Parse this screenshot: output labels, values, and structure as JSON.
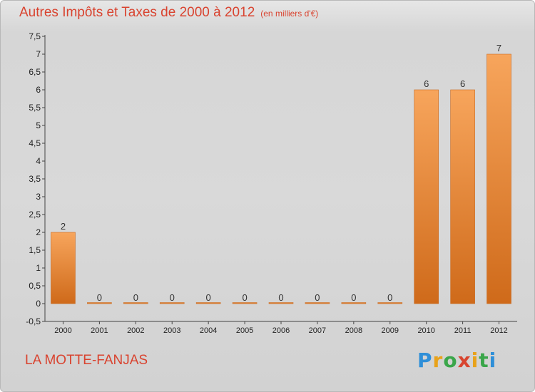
{
  "chart_data": {
    "type": "bar",
    "title": "Autres Impôts et Taxes de 2000 à 2012",
    "subtitle": "(en milliers d'€)",
    "categories": [
      "2000",
      "2001",
      "2002",
      "2003",
      "2004",
      "2005",
      "2006",
      "2007",
      "2008",
      "2009",
      "2010",
      "2011",
      "2012"
    ],
    "values": [
      2,
      0,
      0,
      0,
      0,
      0,
      0,
      0,
      0,
      0,
      6,
      6,
      7
    ],
    "data_labels": [
      "2",
      "0",
      "0",
      "0",
      "0",
      "0",
      "0",
      "0",
      "0",
      "0",
      "6",
      "6",
      "7"
    ],
    "ylim": [
      -0.5,
      7.5
    ],
    "yticks": [
      "-0,5",
      "0",
      "0,5",
      "1",
      "1,5",
      "2",
      "2,5",
      "3",
      "3,5",
      "4",
      "4,5",
      "5",
      "5,5",
      "6",
      "6,5",
      "7",
      "7,5"
    ],
    "ytick_values": [
      -0.5,
      0,
      0.5,
      1,
      1.5,
      2,
      2.5,
      3,
      3.5,
      4,
      4.5,
      5,
      5.5,
      6,
      6.5,
      7,
      7.5
    ],
    "grid": false,
    "bar_color_top": "#f7a55c",
    "bar_color_bottom": "#cf6a1a"
  },
  "footer": {
    "commune": "LA MOTTE-FANJAS",
    "logo_letters": [
      "P",
      "r",
      "o",
      "x",
      "i",
      "t",
      "i"
    ],
    "logo_colors": [
      "#2f8fd8",
      "#e8a21a",
      "#3aa64a",
      "#d8452f",
      "#e8a21a",
      "#3aa64a",
      "#2f8fd8"
    ]
  },
  "colors": {
    "title": "#d9432f"
  }
}
